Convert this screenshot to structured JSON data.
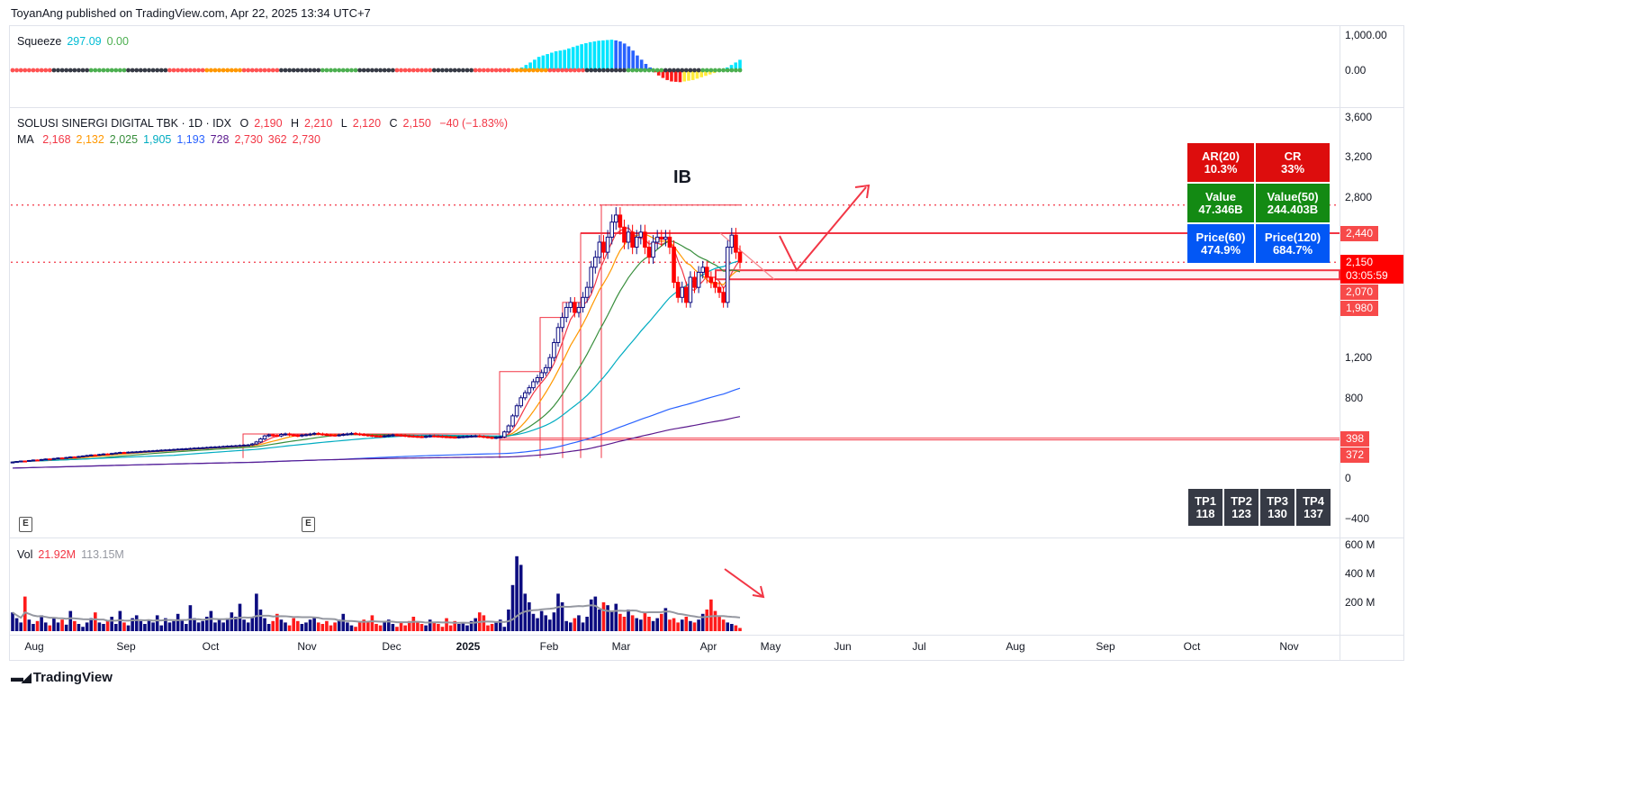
{
  "header": {
    "published": "ToyanAng published on TradingView.com, Apr 22, 2025 13:34 UTC+7"
  },
  "squeeze": {
    "label": "Squeeze",
    "value1": "297.09",
    "value2": "0.00",
    "axis": [
      "1,000.00",
      "0.00"
    ],
    "momentum": [
      0,
      0,
      0,
      0,
      0,
      0,
      0,
      0,
      0,
      0,
      0,
      0,
      0,
      0,
      0,
      0,
      0,
      0,
      0,
      0,
      0,
      0,
      0,
      0,
      0,
      0,
      0,
      0,
      0,
      0,
      0,
      0,
      0,
      0,
      0,
      0,
      0,
      0,
      0,
      0,
      0,
      0,
      0,
      0,
      0,
      0,
      0,
      0,
      0,
      0,
      0,
      0,
      0,
      0,
      0,
      0,
      0,
      0,
      0,
      0,
      0,
      0,
      0,
      0,
      0,
      0,
      0,
      0,
      0,
      0,
      0,
      0,
      0,
      0,
      0,
      0,
      0,
      0,
      0,
      0,
      0,
      0,
      0,
      0,
      0,
      0,
      0,
      0,
      0,
      0,
      0,
      0,
      0,
      0,
      0,
      0,
      0,
      0,
      0,
      0,
      0,
      0,
      0,
      0,
      0,
      0,
      0,
      0,
      0,
      0,
      0,
      0,
      0,
      0,
      0,
      0,
      0,
      0,
      0,
      80,
      150,
      220,
      300,
      380,
      420,
      460,
      500,
      540,
      560,
      580,
      620,
      660,
      700,
      740,
      770,
      800,
      820,
      840,
      850,
      860,
      870,
      850,
      820,
      760,
      680,
      560,
      420,
      300,
      180,
      80,
      -60,
      -150,
      -220,
      -280,
      -320,
      -330,
      -340,
      -320,
      -300,
      -280,
      -240,
      -200,
      -160,
      -120,
      -80,
      -40,
      20,
      80,
      150,
      220,
      297.09
    ],
    "dot_colors": [
      "#ff5252",
      "#363a45",
      "#4caf50",
      "#363a45",
      "#ff5252",
      "#ff9800",
      "#ff5252",
      "#363a45",
      "#4caf50",
      "#363a45",
      "#ff5252",
      "#363a45",
      "#ff5252",
      "#ff9800",
      "#ff5252",
      "#363a45",
      "#4caf50",
      "#363a45",
      "#4caf50"
    ]
  },
  "symbol": {
    "name": "SOLUSI SINERGI DIGITAL TBK · 1D · IDX",
    "o_label": "O",
    "o": "2,190",
    "h_label": "H",
    "h": "2,210",
    "l_label": "L",
    "l": "2,120",
    "c_label": "C",
    "c": "2,150",
    "change": "−40 (−1.83%)"
  },
  "ma": {
    "label": "MA",
    "values": [
      {
        "v": "2,168",
        "color": "#f23645"
      },
      {
        "v": "2,132",
        "color": "#ff9800"
      },
      {
        "v": "2,025",
        "color": "#388e3c"
      },
      {
        "v": "1,905",
        "color": "#00acc1"
      },
      {
        "v": "1,193",
        "color": "#2962ff"
      },
      {
        "v": "728",
        "color": "#5b1a8e"
      },
      {
        "v": "2,730",
        "color": "#f23645"
      },
      {
        "v": "362",
        "color": "#f23645"
      },
      {
        "v": "2,730",
        "color": "#f23645"
      }
    ]
  },
  "annotation": {
    "ib": "IB"
  },
  "info_table": [
    [
      {
        "t": "AR(20)",
        "v": "10.3%",
        "bg": "#dd0d0d"
      },
      {
        "t": "CR",
        "v": "33%",
        "bg": "#dd0d0d"
      }
    ],
    [
      {
        "t": "Value",
        "v": "47.346B",
        "bg": "#138a13"
      },
      {
        "t": "Value(50)",
        "v": "244.403B",
        "bg": "#138a13"
      }
    ],
    [
      {
        "t": "Price(60)",
        "v": "474.9%",
        "bg": "#0257f5"
      },
      {
        "t": "Price(120)",
        "v": "684.7%",
        "bg": "#0257f5"
      }
    ]
  ],
  "tp_table": [
    {
      "t": "TP1",
      "v": "118"
    },
    {
      "t": "TP2",
      "v": "123"
    },
    {
      "t": "TP3",
      "v": "130"
    },
    {
      "t": "TP4",
      "v": "137"
    }
  ],
  "price_axis": {
    "ticks": [
      3600,
      3200,
      2800,
      1200,
      800,
      0,
      -400
    ],
    "tick_labels": [
      "3,600",
      "3,200",
      "2,800",
      "1,200",
      "800",
      "0",
      "−400"
    ],
    "badges": [
      {
        "v": "2,440",
        "p": 2440,
        "bg": "#f74a4a"
      },
      {
        "v": "2,150",
        "p": 2150,
        "bg": "#ff0000",
        "sub": "03:05:59"
      },
      {
        "v": "2,070",
        "p": 2000,
        "bg": "#f74a4a"
      },
      {
        "v": "1,980",
        "p": 1890,
        "bg": "#f74a4a"
      },
      {
        "v": "398",
        "p": 398,
        "bg": "#f74a4a"
      },
      {
        "v": "372",
        "p": 230,
        "bg": "#f74a4a"
      }
    ]
  },
  "levels": {
    "dotted": [
      2720,
      2150
    ],
    "solid": [
      2440,
      2070,
      1980,
      398,
      372
    ]
  },
  "volume": {
    "label": "Vol",
    "value": "21.92M",
    "ma_value": "113.15M",
    "ticks": [
      600,
      400,
      200
    ],
    "tick_labels": [
      "600 M",
      "400 M",
      "200 M"
    ]
  },
  "events": [
    "E",
    "E"
  ],
  "time_axis": [
    "Aug",
    "Sep",
    "Oct",
    "Nov",
    "Dec",
    "2025",
    "Feb",
    "Mar",
    "Apr",
    "May",
    "Jun",
    "Jul",
    "Aug",
    "Sep",
    "Oct",
    "Nov"
  ],
  "footer": {
    "brand": "TradingView"
  },
  "chart_data": {
    "type": "candlestick",
    "title": "SOLUSI SINERGI DIGITAL TBK · 1D · IDX",
    "ylim": [
      -600,
      3800
    ],
    "x_range": [
      "Aug 2024",
      "Nov 2025"
    ],
    "closes": [
      160,
      165,
      170,
      168,
      175,
      180,
      178,
      185,
      190,
      188,
      195,
      200,
      198,
      205,
      210,
      208,
      215,
      220,
      225,
      230,
      228,
      235,
      240,
      238,
      245,
      250,
      255,
      252,
      258,
      260,
      262,
      265,
      268,
      270,
      272,
      275,
      278,
      280,
      282,
      285,
      288,
      290,
      292,
      295,
      298,
      300,
      302,
      305,
      308,
      310,
      312,
      315,
      318,
      320,
      322,
      325,
      328,
      330,
      340,
      360,
      390,
      420,
      430,
      425,
      420,
      435,
      440,
      430,
      425,
      420,
      428,
      432,
      438,
      445,
      440,
      435,
      430,
      428,
      425,
      430,
      435,
      440,
      445,
      440,
      435,
      430,
      425,
      420,
      418,
      415,
      420,
      425,
      430,
      428,
      425,
      420,
      418,
      415,
      412,
      410,
      415,
      420,
      418,
      415,
      412,
      410,
      408,
      405,
      410,
      412,
      415,
      418,
      420,
      415,
      410,
      405,
      400,
      405,
      410,
      460,
      520,
      620,
      720,
      800,
      850,
      900,
      960,
      1000,
      1050,
      1100,
      1200,
      1350,
      1500,
      1600,
      1700,
      1750,
      1650,
      1700,
      1800,
      1900,
      2100,
      2200,
      2350,
      2250,
      2400,
      2550,
      2620,
      2500,
      2350,
      2450,
      2300,
      2400,
      2450,
      2300,
      2200,
      2350,
      2400,
      2380,
      2400,
      2300,
      1950,
      1800,
      1900,
      1750,
      2000,
      1900,
      2050,
      2100,
      2000,
      1950,
      1900,
      1850,
      1750,
      2300,
      2420,
      2250,
      2150
    ],
    "volumes_m": [
      130,
      90,
      60,
      240,
      80,
      50,
      70,
      110,
      60,
      40,
      90,
      60,
      80,
      45,
      140,
      70,
      50,
      30,
      60,
      90,
      130,
      60,
      50,
      70,
      100,
      50,
      140,
      60,
      40,
      90,
      110,
      70,
      50,
      80,
      60,
      110,
      40,
      90,
      60,
      70,
      120,
      80,
      50,
      180,
      90,
      60,
      70,
      100,
      140,
      60,
      80,
      60,
      90,
      130,
      100,
      190,
      80,
      60,
      100,
      260,
      150,
      90,
      50,
      70,
      120,
      80,
      60,
      40,
      90,
      70,
      50,
      60,
      80,
      100,
      60,
      50,
      70,
      40,
      60,
      80,
      120,
      60,
      40,
      30,
      60,
      80,
      70,
      110,
      50,
      40,
      60,
      80,
      50,
      30,
      60,
      40,
      70,
      100,
      60,
      50,
      40,
      80,
      60,
      50,
      30,
      90,
      40,
      70,
      50,
      60,
      40,
      70,
      90,
      130,
      110,
      40,
      50,
      60,
      80,
      30,
      150,
      320,
      520,
      460,
      260,
      200,
      120,
      90,
      140,
      110,
      80,
      130,
      260,
      200,
      70,
      60,
      90,
      110,
      60,
      100,
      220,
      240,
      150,
      200,
      180,
      140,
      190,
      120,
      100,
      150,
      110,
      90,
      80,
      130,
      100,
      70,
      90,
      120,
      160,
      80,
      90,
      60,
      80,
      100,
      70,
      60,
      80,
      120,
      150,
      220,
      140,
      100,
      80,
      60,
      50,
      40,
      22
    ]
  }
}
